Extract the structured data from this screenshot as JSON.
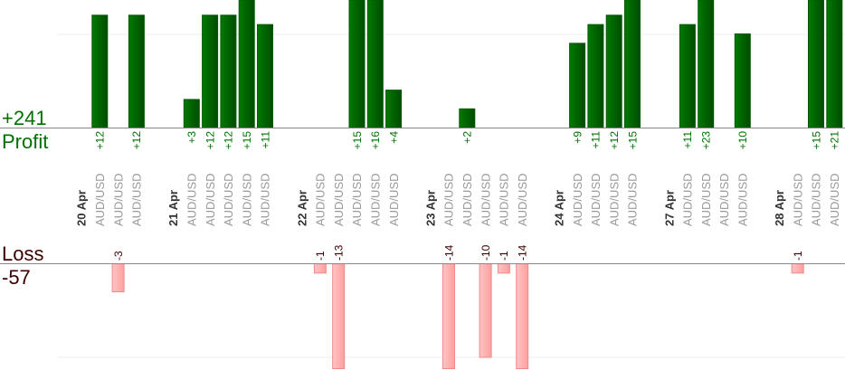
{
  "chart_data": {
    "type": "bar",
    "profit_label": "Profit",
    "profit_total": "+241",
    "loss_label": "Loss",
    "loss_total": "-57",
    "colors": {
      "profit": "#006400",
      "profit_text": "#007000",
      "loss": "#ffb3b3",
      "loss_border": "#f08a8a",
      "loss_text": "#3a0000",
      "date_text": "#333333",
      "pair_text": "#999999"
    },
    "days": [
      {
        "date": "20 Apr",
        "trades": [
          {
            "pair": "AUD/USD",
            "value": 12
          },
          {
            "pair": "AUD/USD",
            "value": -3
          },
          {
            "pair": "AUD/USD",
            "value": 12
          }
        ]
      },
      {
        "date": "21 Apr",
        "trades": [
          {
            "pair": "AUD/USD",
            "value": 3
          },
          {
            "pair": "AUD/USD",
            "value": 12
          },
          {
            "pair": "AUD/USD",
            "value": 12
          },
          {
            "pair": "AUD/USD",
            "value": 15
          },
          {
            "pair": "AUD/USD",
            "value": 11
          }
        ]
      },
      {
        "date": "22 Apr",
        "trades": [
          {
            "pair": "AUD/USD",
            "value": -1
          },
          {
            "pair": "AUD/USD",
            "value": -13
          },
          {
            "pair": "AUD/USD",
            "value": 15
          },
          {
            "pair": "AUD/USD",
            "value": 16
          },
          {
            "pair": "AUD/USD",
            "value": 4
          }
        ]
      },
      {
        "date": "23 Apr",
        "trades": [
          {
            "pair": "AUD/USD",
            "value": -14
          },
          {
            "pair": "AUD/USD",
            "value": 2
          },
          {
            "pair": "AUD/USD",
            "value": -10
          },
          {
            "pair": "AUD/USD",
            "value": -1
          },
          {
            "pair": "AUD/USD",
            "value": -14
          }
        ]
      },
      {
        "date": "24 Apr",
        "trades": [
          {
            "pair": "AUD/USD",
            "value": 9
          },
          {
            "pair": "AUD/USD",
            "value": 11
          },
          {
            "pair": "AUD/USD",
            "value": 12
          },
          {
            "pair": "AUD/USD",
            "value": 15
          }
        ]
      },
      {
        "date": "27 Apr",
        "trades": [
          {
            "pair": "AUD/USD",
            "value": 11
          },
          {
            "pair": "AUD/USD",
            "value": 23
          },
          {
            "pair": "AUD/USD",
            "value": null
          },
          {
            "pair": "AUD/USD",
            "value": 10
          }
        ]
      },
      {
        "date": "28 Apr",
        "trades": [
          {
            "pair": "AUD/USD",
            "value": -1
          },
          {
            "pair": "AUD/USD",
            "value": 15
          },
          {
            "pair": "AUD/USD",
            "value": 21
          }
        ]
      }
    ],
    "gridlines": {
      "profit": [
        10
      ],
      "loss": [
        -10
      ]
    }
  }
}
